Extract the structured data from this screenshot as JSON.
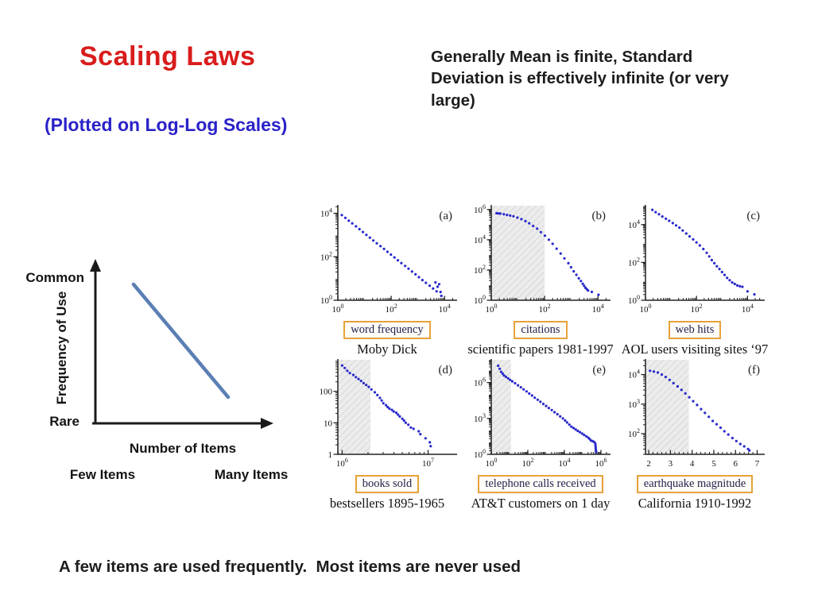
{
  "slide": {
    "title": "Scaling Laws",
    "subtitle": "(Plotted on Log-Log Scales)",
    "note": "Generally Mean is finite, Standard Deviation is effectively infinite (or very large)",
    "footer": "A few items are used frequently.  Most items are never used",
    "colors": {
      "title": "#d91c1c",
      "subtitle": "#2a22c8",
      "text": "#1d1d1d",
      "points": "#2929cc",
      "box_border": "#e6a23a",
      "box_text": "#22224f",
      "axis": "#222222",
      "hatch_bg": "#ececec",
      "hatch_line": "#c9c9c9",
      "diagram_line": "#5b7fb4",
      "diagram_axis": "#1a1a1a"
    }
  },
  "diagram": {
    "y_top_label": "Common",
    "y_bottom_label": "Rare",
    "y_axis_label": "Frequency of Use",
    "x_axis_label": "Number of Items",
    "x_left_label": "Few Items",
    "x_right_label": "Many Items"
  },
  "chart_data": [
    {
      "type": "scatter",
      "scales": "log-log",
      "letter": "(a)",
      "label": "word frequency",
      "caption": "Moby Dick",
      "x": {
        "min": 0,
        "max": 4.35,
        "minor": "log",
        "ticks": [
          {
            "v": 0,
            "e": "0"
          },
          {
            "v": 2,
            "e": "2"
          },
          {
            "v": 4,
            "e": "4"
          }
        ]
      },
      "y": {
        "min": 0,
        "max": 4.35,
        "minor": "log",
        "ticks": [
          {
            "v": 0,
            "e": "0"
          },
          {
            "v": 2,
            "e": "2"
          },
          {
            "v": 4,
            "e": "4"
          }
        ]
      },
      "hatch": null,
      "points": [
        [
          0.15,
          3.92
        ],
        [
          0.28,
          3.79
        ],
        [
          0.41,
          3.66
        ],
        [
          0.54,
          3.54
        ],
        [
          0.68,
          3.4
        ],
        [
          0.81,
          3.27
        ],
        [
          0.94,
          3.14
        ],
        [
          1.07,
          3.01
        ],
        [
          1.2,
          2.88
        ],
        [
          1.33,
          2.75
        ],
        [
          1.46,
          2.62
        ],
        [
          1.6,
          2.49
        ],
        [
          1.73,
          2.36
        ],
        [
          1.86,
          2.23
        ],
        [
          1.99,
          2.1
        ],
        [
          2.12,
          1.97
        ],
        [
          2.25,
          1.84
        ],
        [
          2.38,
          1.71
        ],
        [
          2.52,
          1.58
        ],
        [
          2.65,
          1.45
        ],
        [
          2.78,
          1.32
        ],
        [
          2.91,
          1.19
        ],
        [
          3.04,
          1.06
        ],
        [
          3.17,
          0.93
        ],
        [
          3.3,
          0.8
        ],
        [
          3.44,
          0.67
        ],
        [
          3.57,
          0.54
        ],
        [
          3.7,
          0.41
        ],
        [
          3.66,
          0.82
        ],
        [
          3.74,
          0.62
        ],
        [
          3.8,
          0.74
        ],
        [
          3.85,
          0.38
        ],
        [
          3.88,
          0.2
        ]
      ]
    },
    {
      "type": "scatter",
      "scales": "log-log",
      "letter": "(b)",
      "label": "citations",
      "caption": "scientific papers 1981-1997",
      "x": {
        "min": 0,
        "max": 4.35,
        "minor": "log",
        "ticks": [
          {
            "v": 0,
            "e": "0"
          },
          {
            "v": 2,
            "e": "2"
          },
          {
            "v": 4,
            "e": "4"
          }
        ]
      },
      "y": {
        "min": 0,
        "max": 6.25,
        "minor": "log",
        "ticks": [
          {
            "v": 0,
            "e": "0"
          },
          {
            "v": 2,
            "e": "2"
          },
          {
            "v": 4,
            "e": "4"
          },
          {
            "v": 6,
            "e": "6"
          }
        ]
      },
      "hatch": [
        0,
        2
      ],
      "points": [
        [
          0.2,
          5.75
        ],
        [
          0.27,
          5.74
        ],
        [
          0.34,
          5.73
        ],
        [
          0.47,
          5.69
        ],
        [
          0.59,
          5.64
        ],
        [
          0.71,
          5.6
        ],
        [
          0.83,
          5.55
        ],
        [
          0.98,
          5.46
        ],
        [
          1.13,
          5.36
        ],
        [
          1.28,
          5.23
        ],
        [
          1.42,
          5.09
        ],
        [
          1.57,
          4.91
        ],
        [
          1.72,
          4.73
        ],
        [
          1.86,
          4.5
        ],
        [
          2.01,
          4.27
        ],
        [
          2.16,
          4.0
        ],
        [
          2.3,
          3.73
        ],
        [
          2.45,
          3.41
        ],
        [
          2.6,
          3.09
        ],
        [
          2.74,
          2.77
        ],
        [
          2.89,
          2.45
        ],
        [
          2.99,
          2.18
        ],
        [
          3.09,
          1.91
        ],
        [
          3.19,
          1.68
        ],
        [
          3.28,
          1.45
        ],
        [
          3.36,
          1.27
        ],
        [
          3.43,
          1.09
        ],
        [
          3.48,
          0.95
        ],
        [
          3.53,
          0.82
        ],
        [
          3.58,
          0.73
        ],
        [
          3.63,
          0.64
        ],
        [
          3.77,
          0.55
        ],
        [
          4.02,
          0.36
        ]
      ]
    },
    {
      "type": "scatter",
      "scales": "log-log",
      "letter": "(c)",
      "label": "web hits",
      "caption": "AOL users visiting sites ‘97",
      "x": {
        "min": 0,
        "max": 4.55,
        "minor": "log",
        "ticks": [
          {
            "v": 0,
            "e": "0"
          },
          {
            "v": 2,
            "e": "2"
          },
          {
            "v": 4,
            "e": "4"
          }
        ]
      },
      "y": {
        "min": 0,
        "max": 5.0,
        "minor": "log",
        "ticks": [
          {
            "v": 0,
            "e": "0"
          },
          {
            "v": 2,
            "e": "2"
          },
          {
            "v": 4,
            "e": "4"
          }
        ]
      },
      "hatch": null,
      "points": [
        [
          0.27,
          4.78
        ],
        [
          0.4,
          4.66
        ],
        [
          0.53,
          4.55
        ],
        [
          0.66,
          4.43
        ],
        [
          0.8,
          4.31
        ],
        [
          0.93,
          4.2
        ],
        [
          1.07,
          4.08
        ],
        [
          1.2,
          3.96
        ],
        [
          1.33,
          3.84
        ],
        [
          1.46,
          3.69
        ],
        [
          1.6,
          3.53
        ],
        [
          1.73,
          3.38
        ],
        [
          1.87,
          3.22
        ],
        [
          2.0,
          3.06
        ],
        [
          2.13,
          2.9
        ],
        [
          2.27,
          2.71
        ],
        [
          2.4,
          2.51
        ],
        [
          2.5,
          2.32
        ],
        [
          2.6,
          2.12
        ],
        [
          2.7,
          1.96
        ],
        [
          2.8,
          1.8
        ],
        [
          2.9,
          1.65
        ],
        [
          3.0,
          1.49
        ],
        [
          3.1,
          1.34
        ],
        [
          3.2,
          1.18
        ],
        [
          3.3,
          1.06
        ],
        [
          3.4,
          0.94
        ],
        [
          3.5,
          0.86
        ],
        [
          3.6,
          0.78
        ],
        [
          3.7,
          0.74
        ],
        [
          3.8,
          0.71
        ],
        [
          4.0,
          0.47
        ],
        [
          4.27,
          0.31
        ]
      ]
    },
    {
      "type": "scatter",
      "scales": "log-log",
      "letter": "(d)",
      "label": "books sold",
      "caption": "bestsellers 1895-1965",
      "x": {
        "min": 5.95,
        "max": 7.3,
        "minor": "log",
        "ticks": [
          {
            "v": 6,
            "e": "6"
          },
          {
            "v": 7,
            "e": "7"
          }
        ]
      },
      "y": {
        "min": 0,
        "max": 3.0,
        "minor": "log",
        "ticks": [
          {
            "v": 0,
            "l": "1"
          },
          {
            "v": 1,
            "l": "10"
          },
          {
            "v": 2,
            "l": "100"
          }
        ]
      },
      "hatch": [
        5.95,
        6.33
      ],
      "points": [
        [
          6.0,
          2.82
        ],
        [
          6.03,
          2.74
        ],
        [
          6.06,
          2.65
        ],
        [
          6.09,
          2.58
        ],
        [
          6.13,
          2.52
        ],
        [
          6.16,
          2.45
        ],
        [
          6.19,
          2.39
        ],
        [
          6.22,
          2.33
        ],
        [
          6.25,
          2.26
        ],
        [
          6.28,
          2.2
        ],
        [
          6.31,
          2.14
        ],
        [
          6.34,
          2.06
        ],
        [
          6.38,
          1.97
        ],
        [
          6.41,
          1.88
        ],
        [
          6.44,
          1.79
        ],
        [
          6.46,
          1.71
        ],
        [
          6.48,
          1.62
        ],
        [
          6.51,
          1.56
        ],
        [
          6.53,
          1.5
        ],
        [
          6.55,
          1.45
        ],
        [
          6.58,
          1.41
        ],
        [
          6.6,
          1.36
        ],
        [
          6.63,
          1.32
        ],
        [
          6.65,
          1.26
        ],
        [
          6.67,
          1.2
        ],
        [
          6.7,
          1.13
        ],
        [
          6.72,
          1.07
        ],
        [
          6.74,
          1.0
        ],
        [
          6.77,
          0.94
        ],
        [
          6.8,
          0.85
        ],
        [
          6.83,
          0.81
        ],
        [
          6.89,
          0.73
        ],
        [
          6.91,
          0.64
        ],
        [
          6.97,
          0.51
        ],
        [
          7.02,
          0.38
        ],
        [
          7.03,
          0.26
        ]
      ]
    },
    {
      "type": "scatter",
      "scales": "log-log",
      "letter": "(e)",
      "label": "telephone calls received",
      "caption": "AT&T customers on 1 day",
      "x": {
        "min": 0,
        "max": 6.35,
        "minor": "log",
        "ticks": [
          {
            "v": 0,
            "e": "0"
          },
          {
            "v": 2,
            "e": "2"
          },
          {
            "v": 4,
            "e": "4"
          },
          {
            "v": 6,
            "e": "6"
          }
        ]
      },
      "y": {
        "min": 0,
        "max": 7.9,
        "minor": "log",
        "ticks": [
          {
            "v": 0,
            "e": "0"
          },
          {
            "v": 3,
            "e": "3"
          },
          {
            "v": 6,
            "e": "6"
          }
        ]
      },
      "hatch": [
        0,
        1.08
      ],
      "points": [
        [
          0.38,
          7.4
        ],
        [
          0.46,
          7.15
        ],
        [
          0.54,
          6.9
        ],
        [
          0.62,
          6.75
        ],
        [
          0.69,
          6.6
        ],
        [
          0.8,
          6.48
        ],
        [
          0.92,
          6.35
        ],
        [
          1.03,
          6.22
        ],
        [
          1.15,
          6.1
        ],
        [
          1.3,
          5.94
        ],
        [
          1.46,
          5.77
        ],
        [
          1.62,
          5.6
        ],
        [
          1.77,
          5.43
        ],
        [
          1.93,
          5.26
        ],
        [
          2.08,
          5.08
        ],
        [
          2.23,
          4.91
        ],
        [
          2.38,
          4.73
        ],
        [
          2.54,
          4.56
        ],
        [
          2.69,
          4.39
        ],
        [
          2.85,
          4.21
        ],
        [
          3.0,
          4.04
        ],
        [
          3.15,
          3.87
        ],
        [
          3.31,
          3.7
        ],
        [
          3.46,
          3.52
        ],
        [
          3.62,
          3.35
        ],
        [
          3.77,
          3.17
        ],
        [
          3.92,
          3.0
        ],
        [
          4.04,
          2.83
        ],
        [
          4.15,
          2.66
        ],
        [
          4.27,
          2.48
        ],
        [
          4.38,
          2.31
        ],
        [
          4.5,
          2.2
        ],
        [
          4.62,
          2.08
        ],
        [
          4.73,
          1.96
        ],
        [
          4.85,
          1.85
        ],
        [
          4.97,
          1.73
        ],
        [
          5.08,
          1.62
        ],
        [
          5.2,
          1.5
        ],
        [
          5.31,
          1.39
        ],
        [
          5.39,
          1.27
        ],
        [
          5.46,
          1.15
        ],
        [
          5.54,
          1.1
        ],
        [
          5.62,
          1.04
        ],
        [
          5.69,
          0.92
        ],
        [
          5.7,
          0.75
        ],
        [
          5.71,
          0.6
        ],
        [
          5.72,
          0.45
        ],
        [
          5.73,
          0.3
        ],
        [
          5.74,
          0.2
        ]
      ]
    },
    {
      "type": "scatter",
      "scales": "semilog (linear x, log y)",
      "letter": "(f)",
      "label": "earthquake magnitude",
      "caption": "California 1910-1992",
      "x": {
        "min": 1.85,
        "max": 7.2,
        "minor": {
          "lin": 0.2
        },
        "ticks": [
          {
            "v": 2,
            "l": "2"
          },
          {
            "v": 3,
            "l": "3"
          },
          {
            "v": 4,
            "l": "4"
          },
          {
            "v": 5,
            "l": "5"
          },
          {
            "v": 6,
            "l": "6"
          },
          {
            "v": 7,
            "l": "7"
          }
        ]
      },
      "y": {
        "min": 1.3,
        "max": 4.5,
        "minor": "log",
        "ticks": [
          {
            "v": 2,
            "e": "2"
          },
          {
            "v": 3,
            "e": "3"
          },
          {
            "v": 4,
            "e": "4"
          }
        ]
      },
      "hatch": [
        1.85,
        3.85
      ],
      "points": [
        [
          2.06,
          4.13
        ],
        [
          2.24,
          4.1
        ],
        [
          2.42,
          4.07
        ],
        [
          2.6,
          4.0
        ],
        [
          2.78,
          3.92
        ],
        [
          2.96,
          3.82
        ],
        [
          3.14,
          3.71
        ],
        [
          3.33,
          3.6
        ],
        [
          3.51,
          3.48
        ],
        [
          3.69,
          3.36
        ],
        [
          3.87,
          3.23
        ],
        [
          4.05,
          3.1
        ],
        [
          4.23,
          2.97
        ],
        [
          4.41,
          2.83
        ],
        [
          4.59,
          2.7
        ],
        [
          4.77,
          2.57
        ],
        [
          4.95,
          2.43
        ],
        [
          5.13,
          2.32
        ],
        [
          5.31,
          2.2
        ],
        [
          5.49,
          2.08
        ],
        [
          5.67,
          1.97
        ],
        [
          5.86,
          1.85
        ],
        [
          6.04,
          1.75
        ],
        [
          6.22,
          1.65
        ],
        [
          6.4,
          1.57
        ],
        [
          6.58,
          1.48
        ],
        [
          6.64,
          1.43
        ]
      ]
    }
  ]
}
